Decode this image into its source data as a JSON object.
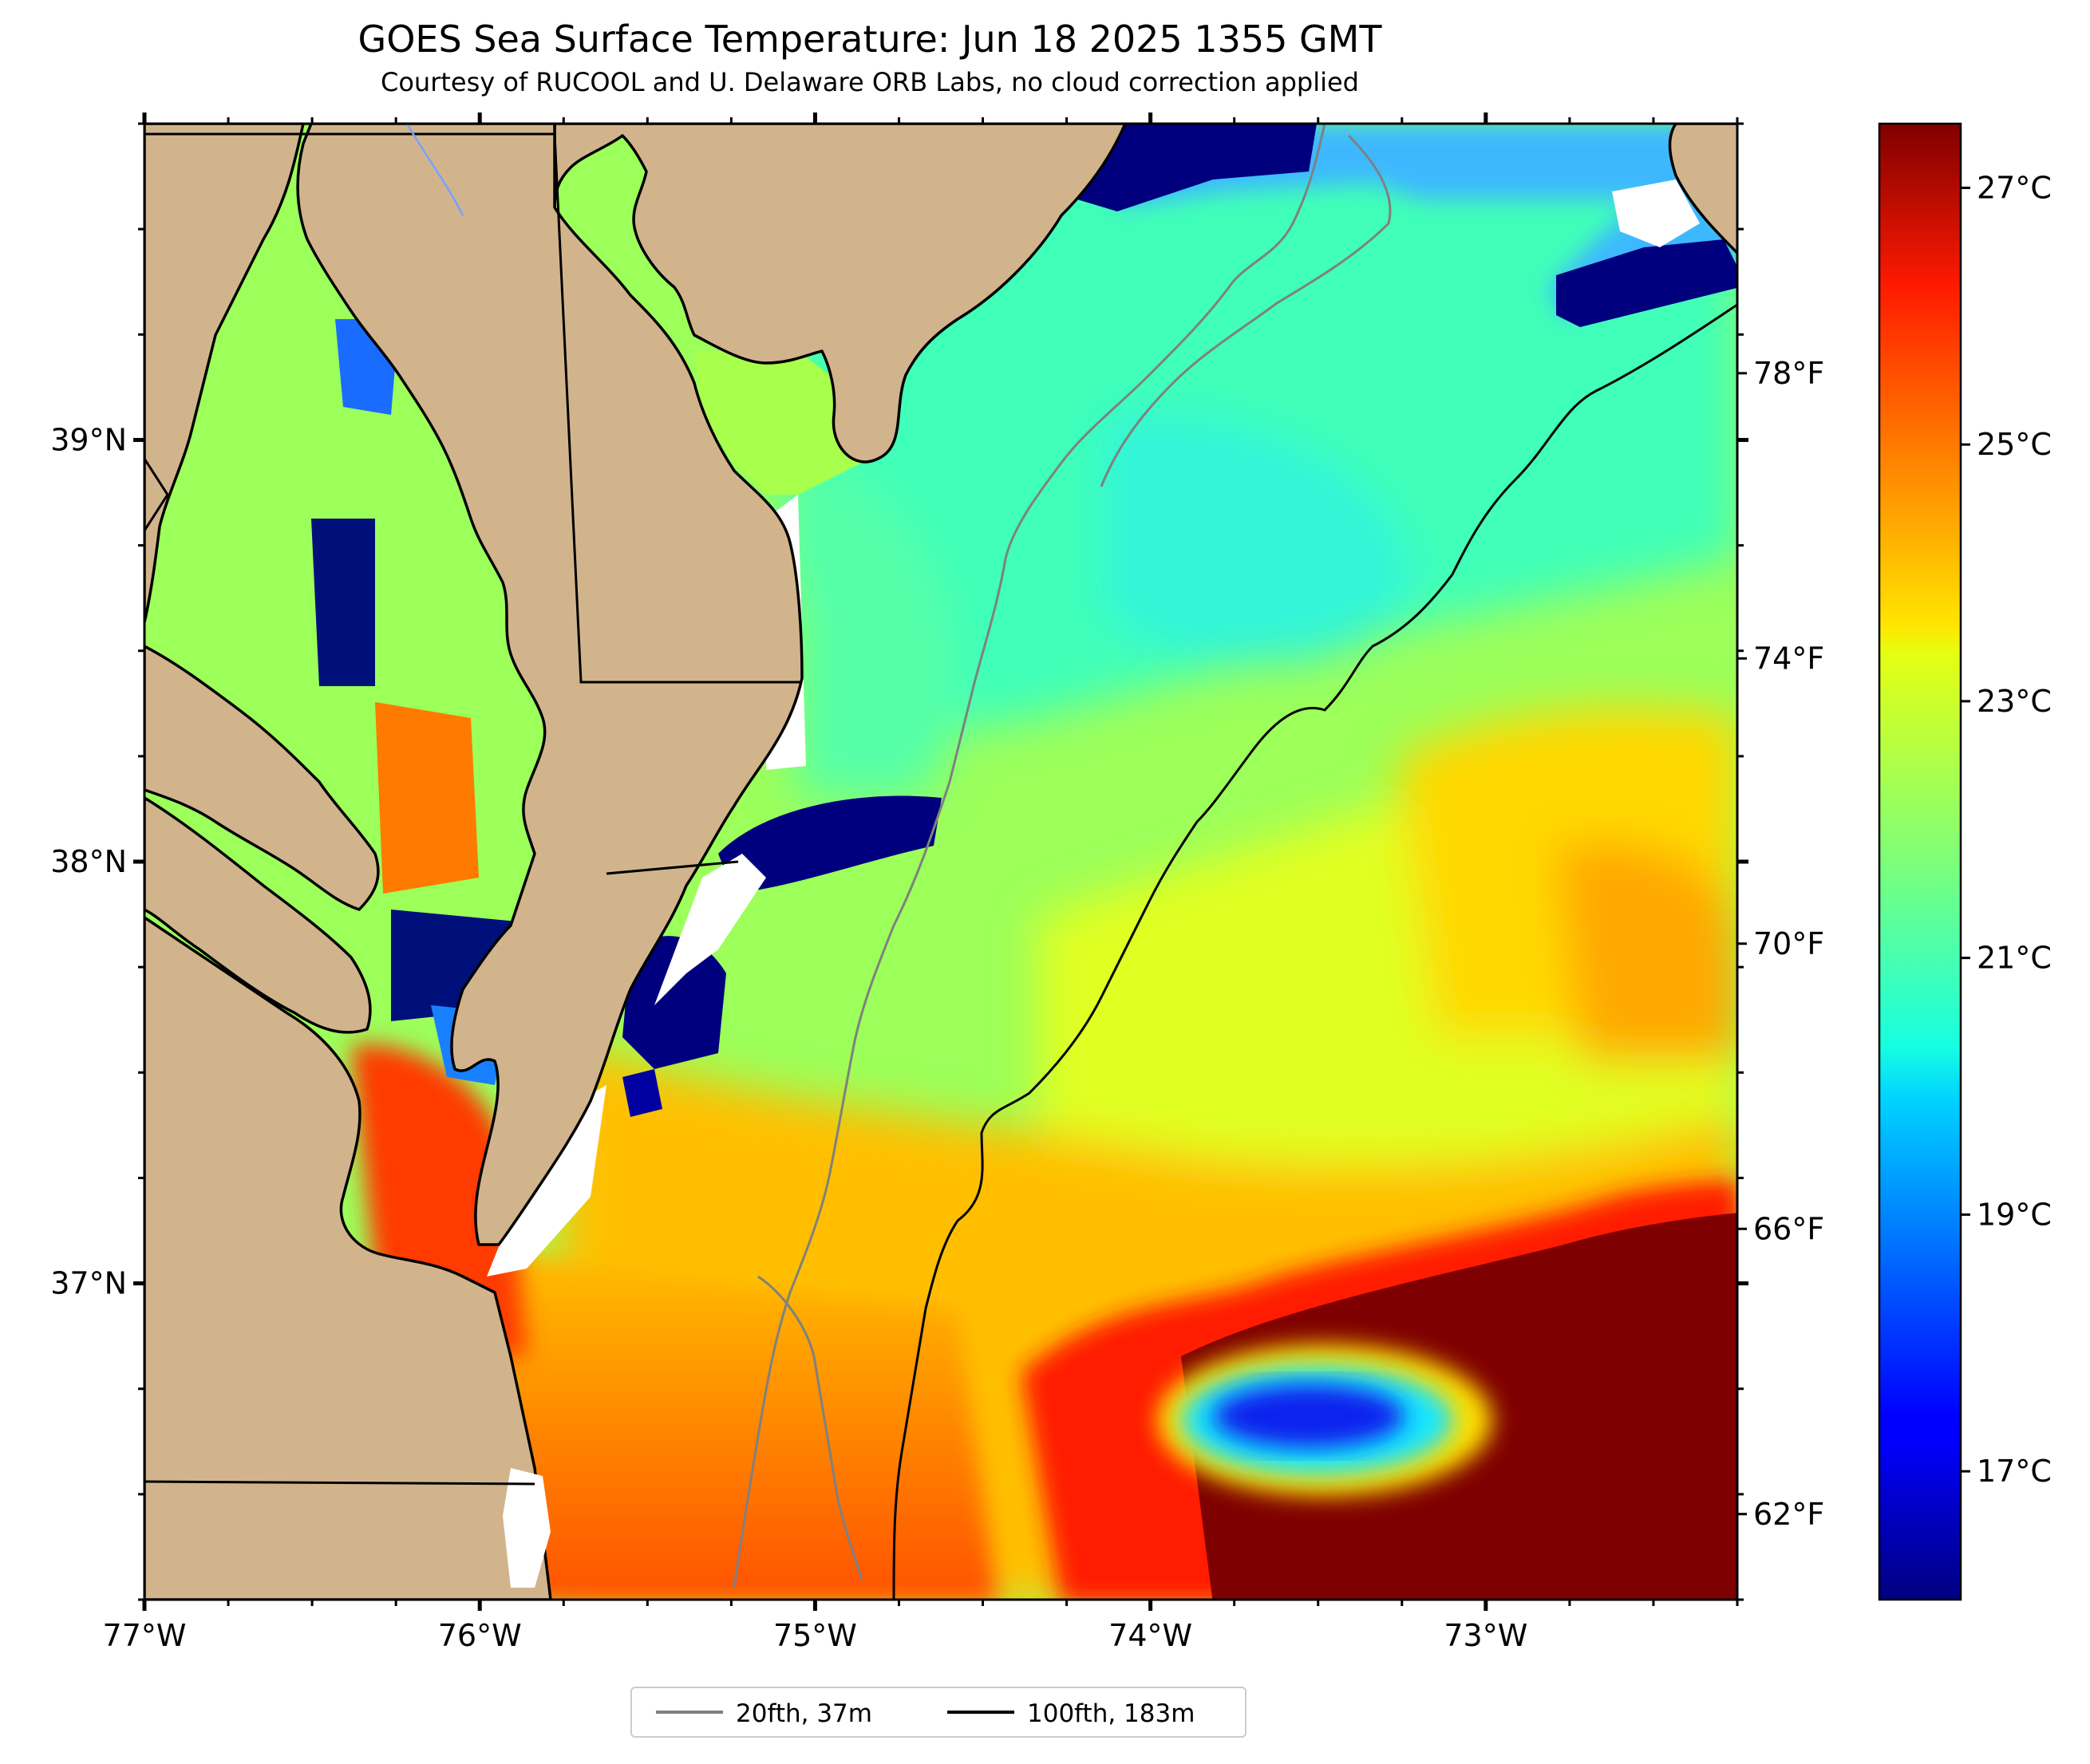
{
  "title": "GOES Sea Surface Temperature: Jun 18 2025 1355 GMT",
  "subtitle": "Courtesy of RUCOOL and U. Delaware ORB Labs, no cloud correction applied",
  "map": {
    "lon_range": [
      -77.0,
      -72.25
    ],
    "lat_range": [
      36.25,
      39.75
    ],
    "lon_ticks": [
      {
        "value": -77,
        "label": "77°W"
      },
      {
        "value": -76,
        "label": "76°W"
      },
      {
        "value": -75,
        "label": "75°W"
      },
      {
        "value": -74,
        "label": "74°W"
      },
      {
        "value": -73,
        "label": "73°W"
      }
    ],
    "lat_ticks": [
      {
        "value": 39,
        "label": "39°N"
      },
      {
        "value": 38,
        "label": "38°N"
      },
      {
        "value": 37,
        "label": "37°N"
      }
    ],
    "colors": {
      "land": "#d2b48c",
      "no_data": "#ffffff",
      "contour_20fth": "#808080",
      "contour_100fth": "#000000"
    }
  },
  "colorbar": {
    "colormap": "jet",
    "celsius_range": [
      16.0,
      27.5
    ],
    "celsius_ticks": [
      {
        "value": 27,
        "label": "27°C"
      },
      {
        "value": 25,
        "label": "25°C"
      },
      {
        "value": 23,
        "label": "23°C"
      },
      {
        "value": 21,
        "label": "21°C"
      },
      {
        "value": 19,
        "label": "19°C"
      },
      {
        "value": 17,
        "label": "17°C"
      }
    ],
    "fahrenheit_ticks": [
      {
        "value": 78,
        "label": "78°F"
      },
      {
        "value": 74,
        "label": "74°F"
      },
      {
        "value": 70,
        "label": "70°F"
      },
      {
        "value": 66,
        "label": "66°F"
      },
      {
        "value": 62,
        "label": "62°F"
      }
    ]
  },
  "legend": {
    "items": [
      {
        "label": "20fth, 37m",
        "color": "#808080"
      },
      {
        "label": "100fth, 183m",
        "color": "#000000"
      }
    ]
  }
}
